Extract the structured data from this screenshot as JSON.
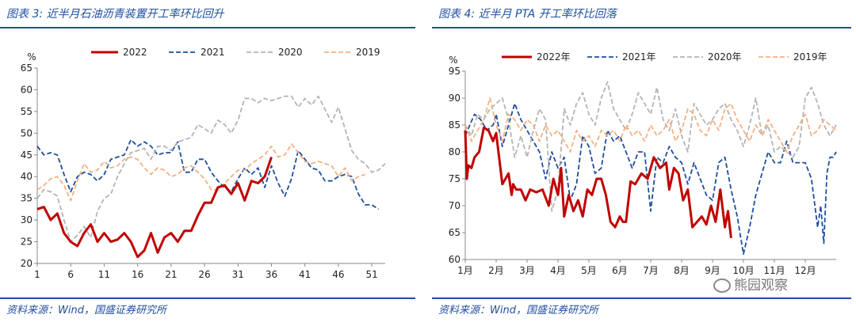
{
  "charts": [
    {
      "title": "图表 3:  近半月石油沥青装置开工率环比回升",
      "source": "资料来源：Wind，国盛证券研究所"
    },
    {
      "title": "图表 4:  近半月 PTA 开工率环比回落",
      "source": "资料来源：Wind，国盛证券研究所",
      "watermark": "熊园观察"
    }
  ],
  "chart_data": [
    {
      "type": "line",
      "title": "近半月石油沥青装置开工率环比回升",
      "ylabel": "%",
      "xlabel": "",
      "ylim": [
        20,
        65
      ],
      "yticks": [
        20,
        25,
        30,
        35,
        40,
        45,
        50,
        55,
        60,
        65
      ],
      "xlim": [
        1,
        53
      ],
      "xticks": [
        1,
        6,
        11,
        16,
        21,
        26,
        31,
        36,
        41,
        46,
        51
      ],
      "legend": [
        "2022",
        "2021",
        "2020",
        "2019"
      ],
      "series": [
        {
          "name": "2022",
          "color": "#c00000",
          "style": "solid",
          "x": [
            1,
            2,
            3,
            4,
            5,
            6,
            7,
            8,
            9,
            10,
            11,
            12,
            13,
            14,
            15,
            16,
            17,
            18,
            19,
            20,
            21,
            22,
            23,
            24,
            25,
            26,
            27,
            28,
            29,
            30,
            31,
            32,
            33,
            34,
            35,
            36
          ],
          "values": [
            32.5,
            33,
            30,
            31.5,
            27,
            25,
            24,
            27,
            29,
            25,
            27,
            25,
            25.5,
            27,
            25,
            21.5,
            23,
            27,
            22.5,
            26,
            27,
            25,
            27.5,
            27.5,
            31,
            34,
            34,
            37.5,
            38,
            36,
            38.5,
            34.5,
            39,
            38.5,
            40,
            44.5
          ]
        },
        {
          "name": "2021",
          "color": "#1f4e9e",
          "style": "dash",
          "x": [
            1,
            2,
            3,
            4,
            5,
            6,
            7,
            8,
            9,
            10,
            11,
            12,
            13,
            14,
            15,
            16,
            17,
            18,
            19,
            20,
            21,
            22,
            23,
            24,
            25,
            26,
            27,
            28,
            29,
            30,
            31,
            32,
            33,
            34,
            35,
            36,
            37,
            38,
            39,
            40,
            41,
            42,
            43,
            44,
            45,
            46,
            47,
            48,
            49,
            50,
            51,
            52
          ],
          "values": [
            47,
            45,
            45.5,
            45,
            40.5,
            36.5,
            40,
            41,
            40.5,
            39,
            40.5,
            44,
            44.5,
            45,
            48.5,
            47,
            48,
            47,
            45,
            45.5,
            45.5,
            48,
            41,
            41,
            44,
            44,
            41,
            39,
            37.5,
            36.5,
            39.5,
            42,
            40.5,
            42,
            37.5,
            42.5,
            38.5,
            35.5,
            39.5,
            46,
            44,
            42,
            41.5,
            39,
            39,
            40,
            40.5,
            40,
            36,
            33.5,
            33.5,
            32.5
          ]
        },
        {
          "name": "2020",
          "color": "#b4b4b4",
          "style": "dash",
          "x": [
            1,
            2,
            3,
            4,
            5,
            6,
            7,
            8,
            9,
            10,
            11,
            12,
            13,
            14,
            15,
            16,
            17,
            18,
            19,
            20,
            21,
            22,
            23,
            24,
            25,
            26,
            27,
            28,
            29,
            30,
            31,
            32,
            33,
            34,
            35,
            36,
            37,
            38,
            39,
            40,
            41,
            42,
            43,
            44,
            45,
            46,
            47,
            48,
            49,
            50,
            51,
            52,
            53
          ],
          "values": [
            35,
            37,
            36.5,
            35.5,
            30,
            25,
            26.5,
            28.5,
            26,
            32,
            35,
            36,
            40,
            43,
            45.5,
            46,
            46.5,
            44,
            47,
            47,
            46,
            48,
            48.5,
            49,
            52,
            51,
            50,
            53,
            52,
            50,
            53,
            58,
            58,
            57,
            58,
            57.5,
            58,
            58.5,
            58.5,
            56,
            58,
            56.5,
            58.5,
            55.5,
            52.5,
            56,
            51,
            46,
            44,
            43,
            41,
            41.5,
            43
          ]
        },
        {
          "name": "2019",
          "color": "#f4b183",
          "style": "dash",
          "x": [
            1,
            2,
            3,
            4,
            5,
            6,
            7,
            8,
            9,
            10,
            11,
            12,
            13,
            14,
            15,
            16,
            17,
            18,
            19,
            20,
            21,
            22,
            23,
            24,
            25,
            26,
            27,
            28,
            29,
            30,
            31,
            32,
            33,
            34,
            35,
            36,
            37,
            38,
            39,
            40,
            41,
            42,
            43,
            44,
            45,
            46,
            47,
            48,
            49,
            50
          ],
          "values": [
            37,
            38,
            39.5,
            40,
            38,
            34.5,
            39,
            43,
            41,
            41.5,
            43.5,
            42,
            42.5,
            44,
            44.5,
            44,
            42,
            40.5,
            42,
            41.5,
            40,
            40.5,
            42,
            42.5,
            41,
            39.5,
            37,
            37,
            38.5,
            40,
            41.5,
            41.5,
            43,
            44,
            45,
            47,
            44.5,
            45,
            47.5,
            45.5,
            43.5,
            43,
            43.5,
            43,
            42.5,
            40,
            42,
            39,
            40,
            40.5
          ]
        }
      ]
    },
    {
      "type": "line",
      "title": "近半月 PTA 开工率环比回落",
      "ylabel": "%",
      "xlabel": "",
      "ylim": [
        60,
        95
      ],
      "yticks": [
        60,
        65,
        70,
        75,
        80,
        85,
        90,
        95
      ],
      "xlim": [
        1,
        13
      ],
      "xticks": [
        "1月",
        "2月",
        "3月",
        "4月",
        "5月",
        "6月",
        "7月",
        "8月",
        "9月",
        "10月",
        "11月",
        "12月"
      ],
      "legend": [
        "2022年",
        "2021年",
        "2020年",
        "2019年"
      ],
      "series": [
        {
          "name": "2022年",
          "color": "#c00000",
          "style": "solid",
          "x": [
            1.0,
            1.05,
            1.1,
            1.2,
            1.3,
            1.45,
            1.6,
            1.75,
            1.9,
            2.0,
            2.2,
            2.4,
            2.5,
            2.55,
            2.65,
            2.8,
            2.95,
            3.1,
            3.3,
            3.5,
            3.7,
            3.85,
            4.0,
            4.1,
            4.2,
            4.35,
            4.5,
            4.65,
            4.8,
            4.95,
            5.1,
            5.25,
            5.4,
            5.55,
            5.7,
            5.85,
            6.0,
            6.1,
            6.2,
            6.35,
            6.5,
            6.7,
            6.9,
            7.1,
            7.3,
            7.5,
            7.6,
            7.75,
            7.9,
            8.05,
            8.2,
            8.35,
            8.5,
            8.65,
            8.8,
            8.95,
            9.1,
            9.25,
            9.4,
            9.5,
            9.6
          ],
          "values": [
            84,
            75,
            77.5,
            77,
            79,
            80,
            84.5,
            84,
            82,
            83.5,
            74,
            76,
            72,
            74,
            73,
            73,
            71,
            73,
            72.5,
            73,
            70,
            75,
            72,
            77,
            68,
            72,
            69,
            71,
            68,
            73,
            72,
            75,
            75,
            72,
            67,
            66,
            68,
            67,
            67,
            74.5,
            74,
            76,
            75,
            79,
            77,
            78,
            73,
            77,
            76,
            71,
            73,
            66,
            67,
            68,
            66.5,
            70,
            67,
            73,
            66,
            69,
            64
          ]
        },
        {
          "name": "2021年",
          "color": "#1f4e9e",
          "style": "dash",
          "x": [
            1.0,
            1.15,
            1.3,
            1.5,
            1.7,
            1.9,
            2.0,
            2.2,
            2.4,
            2.6,
            2.8,
            3.0,
            3.2,
            3.4,
            3.6,
            3.8,
            4.0,
            4.2,
            4.4,
            4.6,
            4.8,
            5.0,
            5.2,
            5.4,
            5.6,
            5.8,
            6.0,
            6.2,
            6.4,
            6.6,
            6.8,
            7.0,
            7.2,
            7.4,
            7.6,
            7.8,
            8.0,
            8.2,
            8.4,
            8.6,
            8.8,
            9.0,
            9.2,
            9.4,
            9.6,
            9.8,
            10.0,
            10.2,
            10.4,
            10.6,
            10.8,
            11.0,
            11.2,
            11.4,
            11.6,
            11.8,
            12.0,
            12.2,
            12.4,
            12.5,
            12.6,
            12.7,
            12.8,
            12.9,
            13.0
          ],
          "values": [
            83,
            85,
            87,
            86,
            84,
            85,
            87,
            81,
            85,
            89,
            86,
            84,
            82,
            80,
            75,
            80,
            77,
            79,
            71,
            74,
            83,
            81,
            76,
            77,
            84,
            82,
            83,
            80,
            77,
            80,
            80,
            69,
            79,
            78,
            81,
            79,
            78,
            74,
            78,
            75,
            72,
            71,
            78,
            79,
            73,
            68,
            61,
            66,
            72,
            76,
            80,
            78,
            78,
            82,
            78,
            78,
            78,
            75,
            66,
            70,
            63,
            76,
            79,
            79,
            80
          ]
        },
        {
          "name": "2020年",
          "color": "#b4b4b4",
          "style": "dash",
          "x": [
            1.0,
            1.2,
            1.4,
            1.6,
            1.8,
            2.0,
            2.2,
            2.4,
            2.6,
            2.8,
            3.0,
            3.2,
            3.4,
            3.6,
            3.8,
            4.0,
            4.2,
            4.4,
            4.6,
            4.8,
            5.0,
            5.2,
            5.4,
            5.6,
            5.8,
            6.0,
            6.2,
            6.4,
            6.6,
            6.8,
            7.0,
            7.2,
            7.4,
            7.6,
            7.8,
            8.0,
            8.2,
            8.4,
            8.6,
            8.8,
            9.0,
            9.2,
            9.4,
            9.6,
            9.8,
            10.0,
            10.2,
            10.4,
            10.6,
            10.8,
            11.0,
            11.2,
            11.4,
            11.6,
            11.8,
            12.0,
            12.2,
            12.4,
            12.6,
            12.8,
            13.0
          ],
          "values": [
            85,
            83,
            87,
            86,
            88,
            89,
            90,
            86,
            79,
            83,
            79,
            84,
            88,
            86,
            69,
            73,
            88,
            85,
            89,
            91,
            87,
            85,
            90,
            93,
            88,
            86,
            84,
            87,
            91,
            89,
            87,
            92,
            86,
            84,
            88,
            83,
            80,
            89,
            87,
            85,
            86,
            88,
            89,
            86,
            84,
            81,
            85,
            90,
            83,
            85,
            80,
            81,
            80,
            79,
            81,
            90,
            92,
            89,
            85,
            83,
            85
          ]
        },
        {
          "name": "2019年",
          "color": "#f4b183",
          "style": "dash",
          "x": [
            1.0,
            1.2,
            1.4,
            1.6,
            1.8,
            2.0,
            2.2,
            2.4,
            2.6,
            2.8,
            3.0,
            3.2,
            3.4,
            3.6,
            3.8,
            4.0,
            4.2,
            4.4,
            4.6,
            4.8,
            5.0,
            5.2,
            5.4,
            5.6,
            5.8,
            6.0,
            6.2,
            6.4,
            6.6,
            6.8,
            7.0,
            7.2,
            7.4,
            7.6,
            7.8,
            8.0,
            8.2,
            8.4,
            8.6,
            8.8,
            9.0,
            9.2,
            9.4,
            9.6,
            9.8,
            10.0,
            10.2,
            10.4,
            10.6,
            10.8,
            11.0,
            11.2,
            11.4,
            11.6,
            11.8,
            12.0,
            12.2,
            12.4,
            12.6,
            12.8,
            13.0
          ],
          "values": [
            85,
            82,
            84,
            86,
            90,
            85,
            82,
            87,
            86,
            84,
            86,
            85,
            82,
            85,
            83,
            84,
            82,
            80,
            84,
            82,
            83,
            81,
            84,
            83,
            84,
            82,
            85,
            83,
            84,
            82,
            85,
            83,
            84,
            86,
            82,
            84,
            88,
            87,
            84,
            83,
            86,
            84,
            88,
            89,
            86,
            84,
            82,
            85,
            83,
            86,
            84,
            82,
            80,
            83,
            85,
            87,
            83,
            84,
            86,
            85,
            84
          ]
        }
      ]
    }
  ]
}
